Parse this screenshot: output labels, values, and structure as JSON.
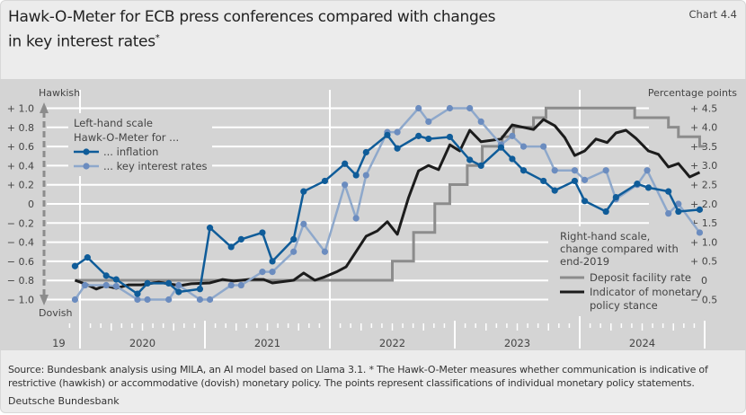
{
  "header": {
    "title_line1": "Hawk-O-Meter for ECB press conferences compared with changes",
    "title_line2": "in key interest rates",
    "title_mark": "*",
    "chart_number": "Chart 4.4"
  },
  "footer": {
    "note": "Source: Bundesbank analysis using MILA, an AI model based on Llama 3.1. * The Hawk-O-Meter measures whether communication is indicative of restrictive (hawkish) or accommodative (dovish) monetary policy. The points represent classifications of individual monetary policy statements.",
    "publisher": "Deutsche Bundesbank"
  },
  "colors": {
    "inflation": "#0f5c99",
    "key_rates": "#8ea8cb",
    "key_rates_dot": "#6b8cbf",
    "deposit": "#8c8c8c",
    "stance": "#1c1c1c",
    "panel": "#d4d4d4"
  },
  "chart_data": {
    "type": "line",
    "left_axis": {
      "label_top": "Hawkish",
      "label_bottom": "Dovish",
      "range": [
        -1.0,
        1.0
      ],
      "ticks": [
        "+ 1.0",
        "+ 0.8",
        "+ 0.6",
        "+ 0.4",
        "+ 0.2",
        "0",
        "− 0.2",
        "− 0.4",
        "− 0.6",
        "− 0.8",
        "− 1.0"
      ]
    },
    "right_axis": {
      "label": "Percentage points",
      "range": [
        -0.5,
        4.5
      ],
      "ticks": [
        "+ 4.5",
        "+ 4.0",
        "+ 3.5",
        "+ 3.0",
        "+ 2.5",
        "+ 2.0",
        "+ 1.5",
        "+ 1.0",
        "+ 0.5",
        "0",
        "− 0.5"
      ]
    },
    "x_axis": {
      "range": [
        2019.92,
        2025.0
      ],
      "labels": [
        {
          "t": 2019.96,
          "text": "19"
        },
        {
          "t": 2020.5,
          "text": "2020"
        },
        {
          "t": 2021.5,
          "text": "2021"
        },
        {
          "t": 2022.5,
          "text": "2022"
        },
        {
          "t": 2023.5,
          "text": "2023"
        },
        {
          "t": 2024.5,
          "text": "2024"
        }
      ]
    },
    "legend_left": {
      "scale": "Left-hand scale",
      "heading": "Hawk-O-Meter for ...",
      "inflation": "... inflation",
      "key_rates": "... key interest rates"
    },
    "legend_right": {
      "scale_line1": "Right-hand scale,",
      "scale_line2": "change compared with",
      "scale_line3": "end-2019",
      "deposit": "Deposit facility rate",
      "stance_line1": "Indicator of monetary",
      "stance_line2": "policy stance"
    },
    "series": [
      {
        "name": "inflation",
        "axis": "left",
        "points": [
          [
            2019.96,
            -0.65
          ],
          [
            2020.06,
            -0.56
          ],
          [
            2020.21,
            -0.75
          ],
          [
            2020.29,
            -0.79
          ],
          [
            2020.46,
            -0.94
          ],
          [
            2020.54,
            -0.83
          ],
          [
            2020.71,
            -0.83
          ],
          [
            2020.79,
            -0.92
          ],
          [
            2020.96,
            -0.89
          ],
          [
            2021.04,
            -0.25
          ],
          [
            2021.21,
            -0.45
          ],
          [
            2021.29,
            -0.37
          ],
          [
            2021.46,
            -0.3
          ],
          [
            2021.54,
            -0.6
          ],
          [
            2021.71,
            -0.37
          ],
          [
            2021.79,
            0.13
          ],
          [
            2021.96,
            0.24
          ],
          [
            2022.12,
            0.42
          ],
          [
            2022.21,
            0.3
          ],
          [
            2022.29,
            0.54
          ],
          [
            2022.46,
            0.72
          ],
          [
            2022.54,
            0.58
          ],
          [
            2022.71,
            0.71
          ],
          [
            2022.79,
            0.68
          ],
          [
            2022.96,
            0.7
          ],
          [
            2023.12,
            0.46
          ],
          [
            2023.21,
            0.4
          ],
          [
            2023.37,
            0.59
          ],
          [
            2023.46,
            0.47
          ],
          [
            2023.55,
            0.35
          ],
          [
            2023.71,
            0.24
          ],
          [
            2023.8,
            0.14
          ],
          [
            2023.96,
            0.24
          ],
          [
            2024.04,
            0.03
          ],
          [
            2024.21,
            -0.08
          ],
          [
            2024.29,
            0.07
          ],
          [
            2024.46,
            0.21
          ],
          [
            2024.55,
            0.17
          ],
          [
            2024.71,
            0.13
          ],
          [
            2024.79,
            -0.08
          ],
          [
            2024.96,
            -0.06
          ]
        ]
      },
      {
        "name": "key interest rates",
        "axis": "left",
        "points": [
          [
            2019.96,
            -1.0
          ],
          [
            2020.04,
            -0.85
          ],
          [
            2020.21,
            -0.85
          ],
          [
            2020.29,
            -0.86
          ],
          [
            2020.46,
            -1.0
          ],
          [
            2020.54,
            -1.0
          ],
          [
            2020.71,
            -1.0
          ],
          [
            2020.79,
            -0.85
          ],
          [
            2020.96,
            -1.0
          ],
          [
            2021.04,
            -1.0
          ],
          [
            2021.21,
            -0.85
          ],
          [
            2021.29,
            -0.85
          ],
          [
            2021.46,
            -0.71
          ],
          [
            2021.54,
            -0.71
          ],
          [
            2021.71,
            -0.5
          ],
          [
            2021.79,
            -0.21
          ],
          [
            2021.96,
            -0.5
          ],
          [
            2022.12,
            0.2
          ],
          [
            2022.21,
            -0.15
          ],
          [
            2022.29,
            0.3
          ],
          [
            2022.46,
            0.75
          ],
          [
            2022.54,
            0.75
          ],
          [
            2022.71,
            1.0
          ],
          [
            2022.79,
            0.86
          ],
          [
            2022.96,
            1.0
          ],
          [
            2023.12,
            1.0
          ],
          [
            2023.21,
            0.86
          ],
          [
            2023.37,
            0.62
          ],
          [
            2023.46,
            0.71
          ],
          [
            2023.55,
            0.6
          ],
          [
            2023.71,
            0.6
          ],
          [
            2023.8,
            0.35
          ],
          [
            2023.96,
            0.35
          ],
          [
            2024.04,
            0.25
          ],
          [
            2024.21,
            0.35
          ],
          [
            2024.29,
            0.05
          ],
          [
            2024.46,
            0.2
          ],
          [
            2024.54,
            0.35
          ],
          [
            2024.71,
            -0.1
          ],
          [
            2024.79,
            0.0
          ],
          [
            2024.96,
            -0.3
          ]
        ]
      },
      {
        "name": "Deposit facility rate",
        "axis": "right",
        "step": true,
        "end": 2025.0,
        "points": [
          [
            2019.96,
            0
          ],
          [
            2022.5,
            0.5
          ],
          [
            2022.67,
            1.25
          ],
          [
            2022.84,
            2.0
          ],
          [
            2022.96,
            2.5
          ],
          [
            2023.1,
            3.0
          ],
          [
            2023.22,
            3.5
          ],
          [
            2023.38,
            3.75
          ],
          [
            2023.47,
            4.0
          ],
          [
            2023.63,
            4.25
          ],
          [
            2023.73,
            4.5
          ],
          [
            2024.44,
            4.25
          ],
          [
            2024.71,
            4.0
          ],
          [
            2024.79,
            3.75
          ],
          [
            2024.96,
            3.5
          ]
        ]
      },
      {
        "name": "Indicator of monetary policy stance",
        "axis": "right",
        "points": [
          [
            2019.96,
            0
          ],
          [
            2020.06,
            -0.12
          ],
          [
            2020.13,
            -0.23
          ],
          [
            2020.2,
            -0.14
          ],
          [
            2020.29,
            -0.21
          ],
          [
            2020.39,
            -0.12
          ],
          [
            2020.49,
            -0.12
          ],
          [
            2020.63,
            -0.05
          ],
          [
            2020.8,
            -0.14
          ],
          [
            2020.89,
            -0.09
          ],
          [
            2021.04,
            -0.07
          ],
          [
            2021.14,
            0.02
          ],
          [
            2021.23,
            -0.02
          ],
          [
            2021.35,
            0.02
          ],
          [
            2021.47,
            0.02
          ],
          [
            2021.54,
            -0.07
          ],
          [
            2021.71,
            0.0
          ],
          [
            2021.79,
            0.19
          ],
          [
            2021.88,
            0.0
          ],
          [
            2021.96,
            0.09
          ],
          [
            2022.06,
            0.23
          ],
          [
            2022.13,
            0.35
          ],
          [
            2022.22,
            0.8
          ],
          [
            2022.29,
            1.15
          ],
          [
            2022.38,
            1.29
          ],
          [
            2022.46,
            1.53
          ],
          [
            2022.54,
            1.2
          ],
          [
            2022.63,
            2.16
          ],
          [
            2022.71,
            2.86
          ],
          [
            2022.79,
            3.0
          ],
          [
            2022.87,
            2.89
          ],
          [
            2022.96,
            3.54
          ],
          [
            2023.04,
            3.38
          ],
          [
            2023.12,
            3.92
          ],
          [
            2023.21,
            3.62
          ],
          [
            2023.37,
            3.69
          ],
          [
            2023.46,
            4.06
          ],
          [
            2023.63,
            3.94
          ],
          [
            2023.71,
            4.2
          ],
          [
            2023.8,
            4.04
          ],
          [
            2023.88,
            3.73
          ],
          [
            2023.96,
            3.26
          ],
          [
            2024.04,
            3.38
          ],
          [
            2024.13,
            3.69
          ],
          [
            2024.22,
            3.6
          ],
          [
            2024.29,
            3.85
          ],
          [
            2024.37,
            3.92
          ],
          [
            2024.45,
            3.71
          ],
          [
            2024.55,
            3.38
          ],
          [
            2024.63,
            3.29
          ],
          [
            2024.71,
            2.96
          ],
          [
            2024.79,
            3.05
          ],
          [
            2024.88,
            2.7
          ],
          [
            2024.96,
            2.82
          ]
        ]
      }
    ]
  }
}
